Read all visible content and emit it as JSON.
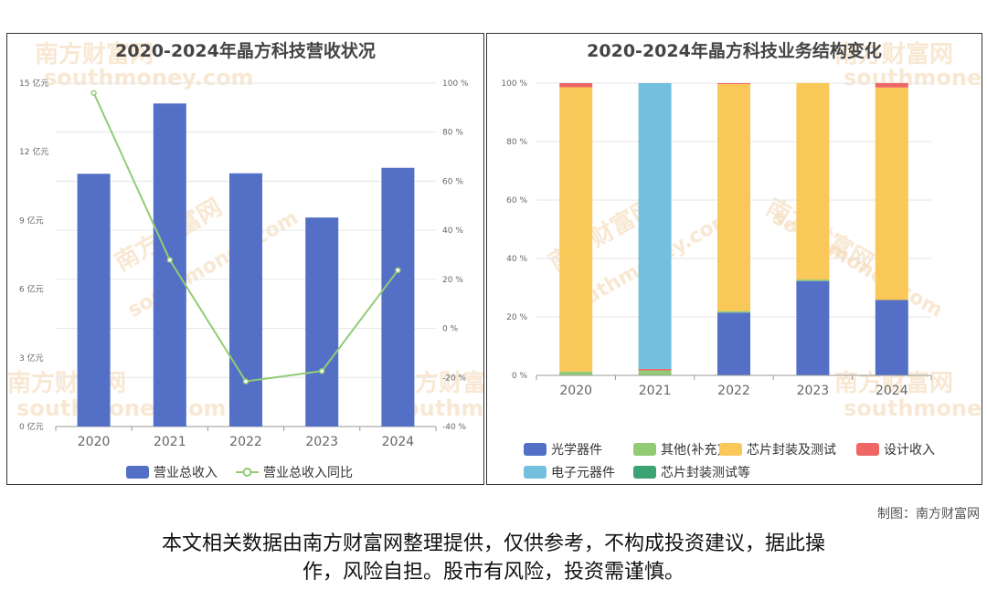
{
  "left_chart": {
    "title": "2020-2024年晶方科技营收状况",
    "legend": [
      "营业总收入",
      "营业总收入同比"
    ]
  },
  "right_chart": {
    "title": "2020-2024年晶方科技业务结构变化",
    "legend": [
      "光学器件",
      "其他(补充)",
      "芯片封装及测试",
      "设计收入",
      "电子元器件",
      "芯片封装测试等"
    ]
  },
  "watermark": [
    "南方财富网",
    "southmoney.com"
  ],
  "credit": "制图：南方财富网",
  "disclaimer_line1": "本文相关数据由南方财富网整理提供，仅供参考，不构成投资建议，据此操",
  "disclaimer_line2": "作，风险自担。股市有风险，投资需谨慎。",
  "colors": {
    "blue": "#5470c6",
    "green": "#91cc75",
    "yellow": "#fac858",
    "red": "#ee6666",
    "cyan": "#73c0de",
    "teal": "#3ba272"
  },
  "chart_data": [
    {
      "type": "bar",
      "title": "2020-2024年晶方科技营收状况",
      "categories": [
        "2020",
        "2021",
        "2022",
        "2023",
        "2024"
      ],
      "y_left": {
        "ticks": [
          "0 亿元",
          "3 亿元",
          "6 亿元",
          "9 亿元",
          "12 亿元",
          "15 亿元"
        ],
        "ylim": [
          0,
          15
        ]
      },
      "y_right": {
        "ticks": [
          "-40 %",
          "-20 %",
          "0 %",
          "20 %",
          "40 %",
          "60 %",
          "80 %",
          "100 %"
        ],
        "ylim": [
          -40,
          100
        ]
      },
      "series": [
        {
          "name": "营业总收入",
          "type": "bar",
          "axis": "left",
          "color": "#5470c6",
          "values": [
            11.04,
            14.11,
            11.06,
            9.13,
            11.3
          ]
        },
        {
          "name": "营业总收入同比",
          "type": "line",
          "axis": "right",
          "color": "#91cc75",
          "values": [
            96.0,
            27.9,
            -21.6,
            -17.4,
            23.7
          ]
        }
      ],
      "grid": true
    },
    {
      "type": "bar",
      "stacked": true,
      "title": "2020-2024年晶方科技业务结构变化",
      "categories": [
        "2020",
        "2021",
        "2022",
        "2023",
        "2024"
      ],
      "y": {
        "ticks": [
          "0 %",
          "20 %",
          "40 %",
          "60 %",
          "80 %",
          "100 %"
        ],
        "ylim": [
          0,
          100
        ]
      },
      "series": [
        {
          "name": "光学器件",
          "color": "#5470c6",
          "values": [
            0,
            0,
            21.5,
            32.3,
            25.8
          ]
        },
        {
          "name": "其他(补充)",
          "color": "#91cc75",
          "values": [
            1.3,
            1.7,
            0.5,
            0.5,
            0
          ]
        },
        {
          "name": "芯片封装及测试",
          "color": "#fac858",
          "values": [
            97.3,
            0,
            77.7,
            67.2,
            72.7
          ]
        },
        {
          "name": "设计收入",
          "color": "#ee6666",
          "values": [
            1.4,
            0.5,
            0.3,
            0,
            1.5
          ]
        },
        {
          "name": "电子元器件",
          "color": "#73c0de",
          "values": [
            0,
            97.8,
            0,
            0,
            0
          ]
        },
        {
          "name": "芯片封装测试等",
          "color": "#3ba272",
          "values": [
            0,
            0,
            0,
            0,
            0
          ]
        }
      ],
      "grid": true
    }
  ]
}
